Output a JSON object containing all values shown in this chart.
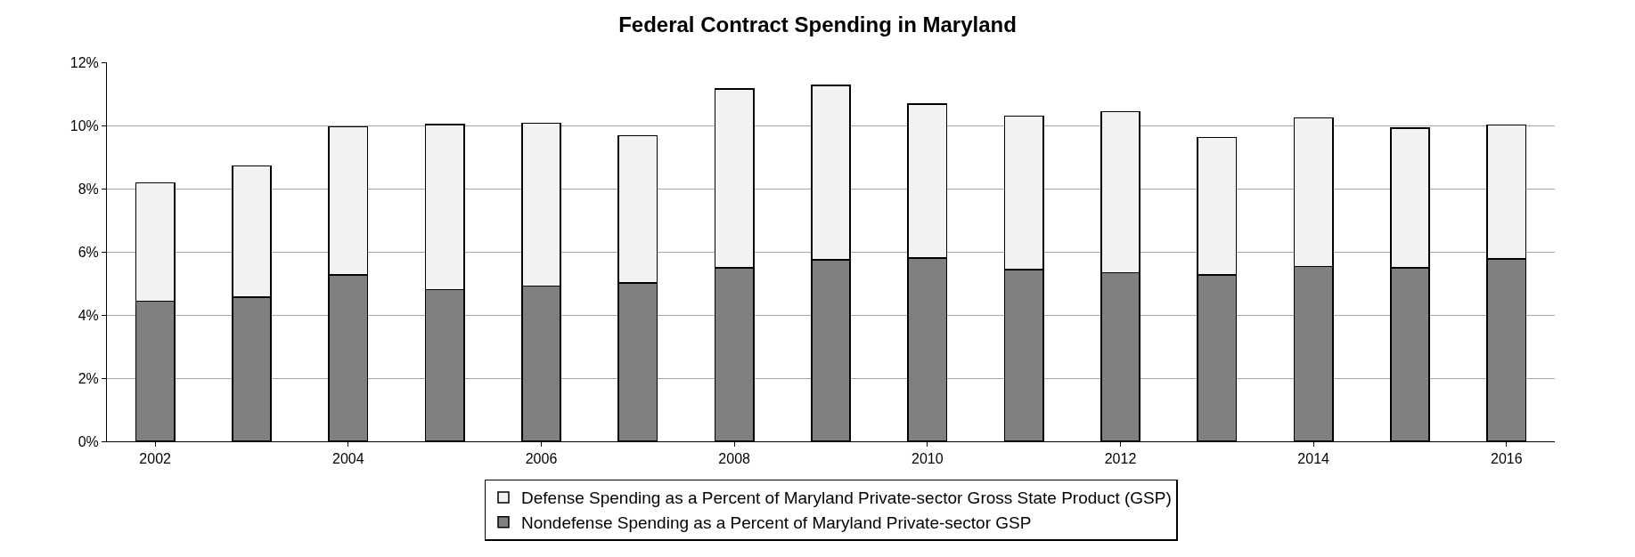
{
  "chart_data": {
    "type": "bar",
    "title": "Federal Contract Spending in Maryland",
    "categories": [
      "2002",
      null,
      "2004",
      null,
      "2006",
      null,
      "2008",
      null,
      "2010",
      null,
      "2012",
      null,
      "2014",
      null,
      "2016"
    ],
    "stacked": true,
    "series": [
      {
        "name": "Nondefense Spending as a Percent of Maryland Private-sector GSP",
        "color": "#808080",
        "values": [
          4.43,
          4.56,
          5.27,
          4.81,
          4.91,
          5.01,
          5.49,
          5.74,
          5.81,
          5.43,
          5.34,
          5.27,
          5.53,
          5.5,
          5.78
        ]
      },
      {
        "name": "Defense Spending as a Percent of Maryland Private-sector Gross State Product (GSP)",
        "color": "#f2f2f2",
        "values": [
          3.76,
          4.16,
          4.69,
          5.22,
          5.16,
          4.66,
          5.67,
          5.53,
          4.87,
          4.87,
          5.09,
          4.35,
          4.71,
          4.41,
          4.23
        ]
      }
    ],
    "ylim": [
      0,
      12
    ],
    "yticks": [
      {
        "value": 0,
        "label": "0%"
      },
      {
        "value": 2,
        "label": "2%"
      },
      {
        "value": 4,
        "label": "4%"
      },
      {
        "value": 6,
        "label": "6%"
      },
      {
        "value": 8,
        "label": "8%"
      },
      {
        "value": 10,
        "label": "10%"
      },
      {
        "value": 12,
        "label": "12%"
      }
    ],
    "grid": "y",
    "legend": "bottom"
  }
}
